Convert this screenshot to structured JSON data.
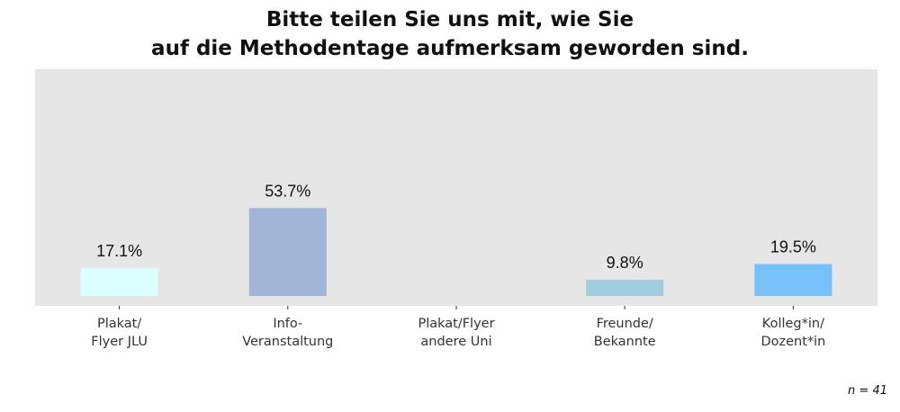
{
  "chart_data": {
    "type": "bar",
    "title": [
      "Bitte teilen Sie uns mit, wie Sie",
      "auf die Methodentage aufmerksam geworden sind."
    ],
    "categories": [
      [
        "Plakat/",
        "Flyer JLU"
      ],
      [
        "Info-",
        "Veranstaltung"
      ],
      [
        "Plakat/Flyer",
        "andere Uni"
      ],
      [
        "Freunde/",
        "Bekannte"
      ],
      [
        "Kolleg*in/",
        "Dozent*in"
      ]
    ],
    "values": [
      17.1,
      53.7,
      0,
      9.8,
      19.5
    ],
    "value_labels": [
      "17.1%",
      "53.7%",
      "",
      "9.8%",
      "19.5%"
    ],
    "colors": [
      "#dcffff",
      "#a2b5d6",
      "#cccccc",
      "#a0ccdf",
      "#76c1fa"
    ],
    "background": "#e6e6e6",
    "ylim": [
      0,
      100
    ],
    "grid": false,
    "xlabel": "",
    "ylabel": ""
  },
  "footer": {
    "n_label": "n = 41"
  }
}
